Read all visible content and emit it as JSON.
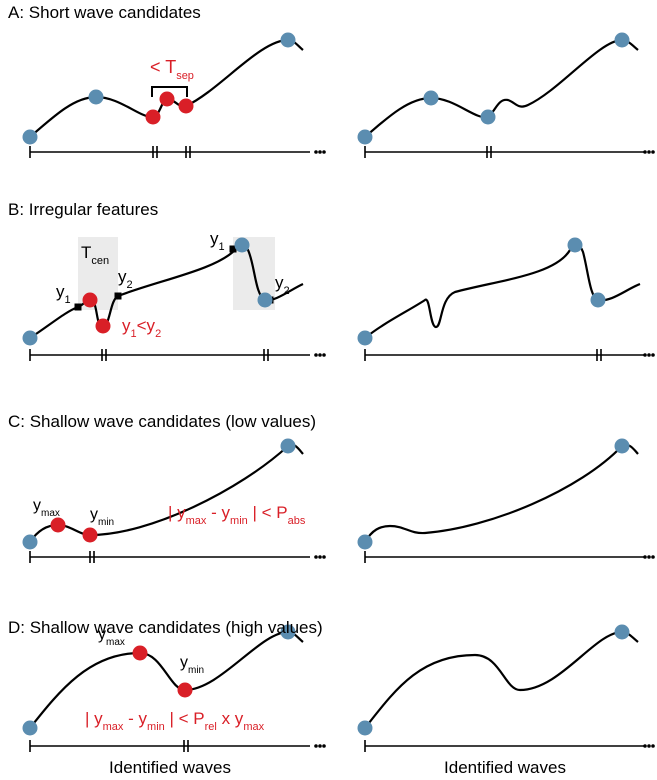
{
  "panels": [
    {
      "title": "A: Short wave candidates",
      "labels": [
        [
          {
            "text": "< T",
            "sub": "sep"
          }
        ]
      ]
    },
    {
      "title": "B: Irregular features",
      "labels": [
        [
          {
            "text": "T",
            "sub": "cen"
          }
        ],
        [
          {
            "text": "y",
            "sub": "1"
          }
        ],
        [
          {
            "text": "y",
            "sub": "2"
          }
        ],
        [
          {
            "text": "y",
            "sub": "1"
          }
        ],
        [
          {
            "text": "y",
            "sub": "2"
          }
        ],
        [
          {
            "text": "y",
            "sub": "1"
          },
          {
            "text": "<y",
            "sub": "2"
          }
        ]
      ]
    },
    {
      "title": "C: Shallow wave candidates (low values)",
      "labels": [
        [
          {
            "text": "y",
            "sub": "max"
          }
        ],
        [
          {
            "text": "y",
            "sub": "min"
          }
        ],
        [
          {
            "text": "| y",
            "sub": "max"
          },
          {
            "text": " - y",
            "sub": "min"
          },
          {
            "text": " | < P",
            "sub": "abs"
          }
        ]
      ]
    },
    {
      "title": "D: Shallow wave candidates (high values)",
      "labels": [
        [
          {
            "text": "y",
            "sub": "max"
          }
        ],
        [
          {
            "text": "y",
            "sub": "min"
          }
        ],
        [
          {
            "text": "| y",
            "sub": "max"
          },
          {
            "text": " - y",
            "sub": "min"
          },
          {
            "text": " | < P",
            "sub": "rel"
          },
          {
            "text": " x y",
            "sub": "max"
          }
        ]
      ]
    }
  ],
  "footer": [
    "Identified waves",
    "Identified waves"
  ]
}
